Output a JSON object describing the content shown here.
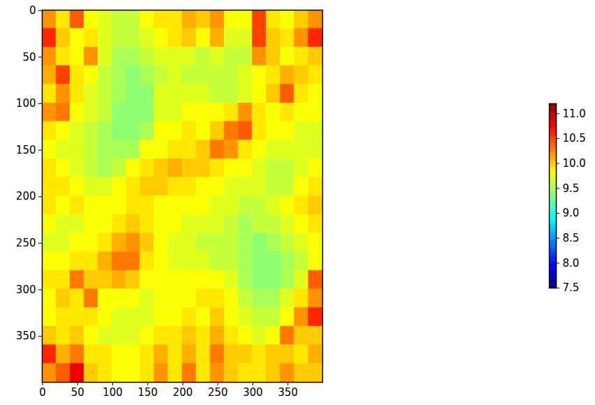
{
  "chart_data": {
    "type": "heatmap",
    "xlim": [
      -0.5,
      399.5
    ],
    "ylim": [
      399.5,
      -0.5
    ],
    "xticks": [
      0,
      50,
      100,
      150,
      200,
      250,
      300,
      350
    ],
    "yticks": [
      0,
      50,
      100,
      150,
      200,
      250,
      300,
      350
    ],
    "cells": [
      [
        10.2,
        9.9,
        10.4,
        9.8,
        9.7,
        9.6,
        9.6,
        9.8,
        9.9,
        9.9,
        10.1,
        10.0,
        10.2,
        9.8,
        9.8,
        10.5,
        9.9,
        9.8,
        10.0,
        10.2
      ],
      [
        10.6,
        10.0,
        9.8,
        9.9,
        9.7,
        9.6,
        9.6,
        9.7,
        9.8,
        9.9,
        10.0,
        9.8,
        10.1,
        9.7,
        9.7,
        10.5,
        10.0,
        9.9,
        10.2,
        10.6
      ],
      [
        10.2,
        9.9,
        9.8,
        10.2,
        9.7,
        9.5,
        9.5,
        9.6,
        9.7,
        9.7,
        9.7,
        9.6,
        9.7,
        9.6,
        9.6,
        10.2,
        10.0,
        9.8,
        9.9,
        10.0
      ],
      [
        10.1,
        10.5,
        9.9,
        9.8,
        9.6,
        9.5,
        9.4,
        9.5,
        9.6,
        9.7,
        9.6,
        9.6,
        9.6,
        9.6,
        9.7,
        9.8,
        9.9,
        10.1,
        10.0,
        9.9
      ],
      [
        9.9,
        10.2,
        9.9,
        9.7,
        9.6,
        9.5,
        9.4,
        9.4,
        9.7,
        9.7,
        9.7,
        9.7,
        9.6,
        9.6,
        9.7,
        9.8,
        10.0,
        10.4,
        9.9,
        9.8
      ],
      [
        10.2,
        10.3,
        9.8,
        9.7,
        9.6,
        9.4,
        9.4,
        9.4,
        9.7,
        9.7,
        9.8,
        9.8,
        9.8,
        9.9,
        10.2,
        9.9,
        9.8,
        9.9,
        9.8,
        9.8
      ],
      [
        9.9,
        9.8,
        9.7,
        9.6,
        9.5,
        9.4,
        9.4,
        9.5,
        9.8,
        9.8,
        9.9,
        9.8,
        10.0,
        10.3,
        10.4,
        9.9,
        9.8,
        9.8,
        9.7,
        9.7
      ],
      [
        9.8,
        9.7,
        9.7,
        9.6,
        9.5,
        9.5,
        9.5,
        9.8,
        9.8,
        9.9,
        9.9,
        10.0,
        10.3,
        10.2,
        9.9,
        9.8,
        9.7,
        9.7,
        9.7,
        9.7
      ],
      [
        9.9,
        9.8,
        9.7,
        9.6,
        9.5,
        9.6,
        9.8,
        9.9,
        10.0,
        10.1,
        10.0,
        10.0,
        9.9,
        9.8,
        9.8,
        9.7,
        9.6,
        9.6,
        9.7,
        9.8
      ],
      [
        9.9,
        9.9,
        9.8,
        9.7,
        9.7,
        9.8,
        9.9,
        10.0,
        10.0,
        9.9,
        9.9,
        9.8,
        9.8,
        9.7,
        9.7,
        9.7,
        9.6,
        9.6,
        9.8,
        9.9
      ],
      [
        9.9,
        9.8,
        9.9,
        9.8,
        9.8,
        9.8,
        9.9,
        9.9,
        9.8,
        9.8,
        9.8,
        9.8,
        9.7,
        9.7,
        9.6,
        9.6,
        9.7,
        9.8,
        9.9,
        10.0
      ],
      [
        9.8,
        9.7,
        9.7,
        9.8,
        9.8,
        9.9,
        10.0,
        9.9,
        9.8,
        9.8,
        9.7,
        9.7,
        9.7,
        9.6,
        9.5,
        9.6,
        9.6,
        9.7,
        9.8,
        9.9
      ],
      [
        9.7,
        9.7,
        9.8,
        9.8,
        9.9,
        10.1,
        10.2,
        10.0,
        9.8,
        9.7,
        9.7,
        9.6,
        9.6,
        9.6,
        9.5,
        9.4,
        9.5,
        9.6,
        9.7,
        9.8
      ],
      [
        9.8,
        9.8,
        9.9,
        9.9,
        10.1,
        10.3,
        10.3,
        9.9,
        9.8,
        9.7,
        9.7,
        9.7,
        9.6,
        9.6,
        9.5,
        9.4,
        9.4,
        9.5,
        9.6,
        9.8
      ],
      [
        9.9,
        9.9,
        10.3,
        10.0,
        10.0,
        10.1,
        10.0,
        9.8,
        9.8,
        9.8,
        9.8,
        9.8,
        9.8,
        9.7,
        9.5,
        9.4,
        9.4,
        9.5,
        9.7,
        10.4
      ],
      [
        9.8,
        10.0,
        9.9,
        10.3,
        9.8,
        9.8,
        9.8,
        9.7,
        9.8,
        9.8,
        9.8,
        9.9,
        9.9,
        9.8,
        9.6,
        9.5,
        9.5,
        9.7,
        9.9,
        10.2
      ],
      [
        9.8,
        9.9,
        9.9,
        9.9,
        9.8,
        9.7,
        9.7,
        9.7,
        9.8,
        9.8,
        9.9,
        9.8,
        10.0,
        9.8,
        9.7,
        9.6,
        9.6,
        9.8,
        10.2,
        10.6
      ],
      [
        10.0,
        9.9,
        10.0,
        9.8,
        9.7,
        9.7,
        9.7,
        9.8,
        9.9,
        9.9,
        10.0,
        9.9,
        10.1,
        9.9,
        9.8,
        9.7,
        9.8,
        10.3,
        10.0,
        10.0
      ],
      [
        10.6,
        10.1,
        10.3,
        9.9,
        9.9,
        9.8,
        9.8,
        9.9,
        10.1,
        9.9,
        10.1,
        9.9,
        10.3,
        10.0,
        10.0,
        9.9,
        10.0,
        10.0,
        9.9,
        10.1
      ],
      [
        10.2,
        10.4,
        10.8,
        10.0,
        9.9,
        9.8,
        9.8,
        9.9,
        10.2,
        9.9,
        10.3,
        9.9,
        10.2,
        10.0,
        9.9,
        9.9,
        10.0,
        10.2,
        10.0,
        10.0
      ]
    ],
    "colorbar_range": [
      7.5,
      11.2
    ],
    "colorbar_ticks": [
      {
        "value": 7.5,
        "label": "7.5"
      },
      {
        "value": 8,
        "label": "8.0"
      },
      {
        "value": 8.5,
        "label": "8.5"
      },
      {
        "value": 9,
        "label": "9.0"
      },
      {
        "value": 9.5,
        "label": "9.5"
      },
      {
        "value": 10,
        "label": "10.0"
      },
      {
        "value": 10.5,
        "label": "10.5"
      },
      {
        "value": 11,
        "label": "11.0"
      }
    ]
  }
}
